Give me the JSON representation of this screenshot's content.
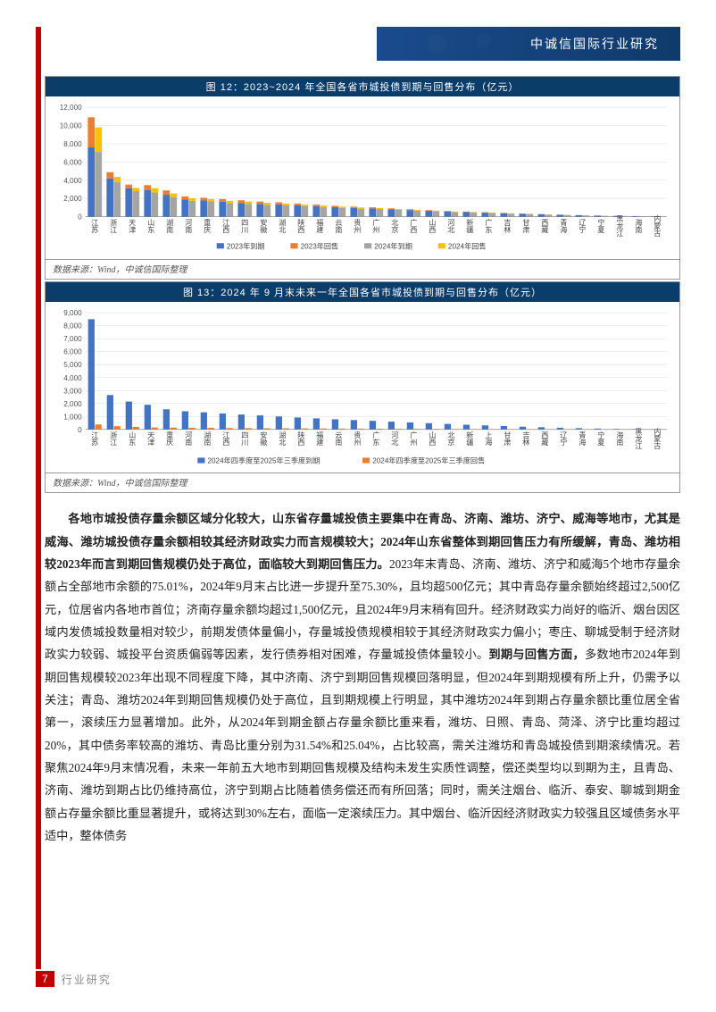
{
  "header": {
    "title": "中诚信国际行业研究"
  },
  "footer": {
    "page_num": "7",
    "label": "行业研究"
  },
  "chart12": {
    "type": "bar-stacked-grouped",
    "title": "图 12：2023~2024 年全国各省市城投债到期与回售分布（亿元）",
    "source": "数据来源：Wind，中诚信国际整理",
    "categories": [
      "江苏",
      "浙江",
      "天津",
      "山东",
      "湖南",
      "河南",
      "重庆",
      "江西",
      "四川",
      "安徽",
      "湖北",
      "陕西",
      "福建",
      "云南",
      "贵州",
      "广州",
      "北京",
      "广西",
      "山西",
      "河北",
      "新疆",
      "广东",
      "吉林",
      "甘肃",
      "西藏",
      "青海",
      "辽宁",
      "宁夏",
      "黑龙江",
      "海南",
      "内蒙古"
    ],
    "ylim": [
      0,
      12000
    ],
    "ytick_step": 2000,
    "group_gap_ratio": 0.25,
    "bar_gap_ratio": 0.02,
    "series": [
      {
        "name": "2023年到期",
        "color": "#4472c4",
        "stack": "a",
        "values": [
          7600,
          4200,
          3100,
          2900,
          2400,
          1900,
          1800,
          1650,
          1500,
          1400,
          1350,
          1250,
          1150,
          1050,
          950,
          900,
          800,
          720,
          640,
          560,
          500,
          440,
          380,
          320,
          260,
          210,
          160,
          120,
          90,
          60,
          40
        ]
      },
      {
        "name": "2023年回售",
        "color": "#ed7d31",
        "stack": "a",
        "values": [
          3300,
          680,
          420,
          560,
          480,
          320,
          280,
          280,
          300,
          260,
          230,
          190,
          180,
          150,
          150,
          130,
          110,
          100,
          80,
          70,
          60,
          50,
          40,
          30,
          25,
          20,
          15,
          10,
          8,
          5,
          4
        ]
      },
      {
        "name": "2024年到期",
        "color": "#a5a5a5",
        "stack": "b",
        "values": [
          7100,
          3800,
          2800,
          2650,
          2150,
          1750,
          1680,
          1500,
          1400,
          1300,
          1250,
          1150,
          1060,
          970,
          880,
          830,
          740,
          660,
          590,
          510,
          460,
          400,
          340,
          290,
          230,
          190,
          140,
          100,
          75,
          50,
          35
        ]
      },
      {
        "name": "2024年回售",
        "color": "#ffc000",
        "stack": "b",
        "values": [
          2700,
          560,
          360,
          480,
          400,
          270,
          250,
          240,
          260,
          220,
          200,
          170,
          160,
          130,
          130,
          110,
          95,
          85,
          70,
          60,
          50,
          42,
          34,
          26,
          20,
          15,
          11,
          8,
          6,
          4,
          3
        ]
      }
    ],
    "background_color": "#ffffff",
    "grid_color": "#dcdcdc",
    "axis_color": "#888888",
    "label_fontsize": 8
  },
  "chart13": {
    "type": "bar-grouped",
    "title": "图 13：2024 年 9 月末未来一年全国各省市城投债到期与回售分布（亿元）",
    "source": "数据来源：Wind，中诚信国际整理",
    "categories": [
      "江苏",
      "浙江",
      "山东",
      "天津",
      "重庆",
      "河南",
      "湖南",
      "江西",
      "四川",
      "安徽",
      "湖北",
      "陕西",
      "福建",
      "云南",
      "贵州",
      "广东",
      "河北",
      "广州",
      "山西",
      "北京",
      "新疆",
      "上海",
      "甘肃",
      "吉林",
      "西藏",
      "辽宁",
      "青海",
      "宁夏",
      "海南",
      "黑龙江",
      "内蒙古"
    ],
    "ylim": [
      0,
      9000
    ],
    "ytick_step": 1000,
    "group_gap_ratio": 0.28,
    "bar_gap_ratio": 0.04,
    "series": [
      {
        "name": "2024年四季度至2025年三季度到期",
        "color": "#4472c4",
        "values": [
          8500,
          2650,
          2150,
          1900,
          1550,
          1400,
          1320,
          1230,
          1150,
          1080,
          1000,
          920,
          850,
          780,
          720,
          660,
          600,
          540,
          480,
          420,
          360,
          310,
          260,
          210,
          170,
          130,
          95,
          65,
          40,
          25,
          15
        ]
      },
      {
        "name": "2024年四季度至2025年三季度回售",
        "color": "#ed7d31",
        "values": [
          380,
          250,
          200,
          150,
          140,
          130,
          120,
          110,
          100,
          90,
          85,
          80,
          74,
          68,
          62,
          56,
          50,
          44,
          38,
          32,
          27,
          23,
          19,
          15,
          12,
          9,
          7,
          5,
          3,
          2,
          1
        ]
      }
    ],
    "background_color": "#ffffff",
    "grid_color": "#dcdcdc",
    "axis_color": "#888888",
    "label_fontsize": 8
  },
  "para": {
    "s1_bold": "各地市城投债存量余额区域分化较大，山东省存量城投债主要集中在青岛、济南、潍坊、济宁、威海等地市，尤其是威海、潍坊城投债存量余额相较其经济财政实力而言规模较大；2024年山东省整体到期回售压力有所缓解，青岛、潍坊相较2023年而言到期回售规模仍处于高位，面临较大到期回售压力。",
    "s2": "2023年末青岛、济南、潍坊、济宁和威海5个地市存量余额占全部地市余额的75.01%，2024年9月末占比进一步提升至75.30%，且均超500亿元；其中青岛存量余额始终超过2,500亿元，位居省内各地市首位；济南存量余额均超过1,500亿元，且2024年9月末稍有回升。经济财政实力尚好的临沂、烟台因区域内发债城投数量相对较少，前期发债体量偏小，存量城投债规模相较于其经济财政实力偏小；枣庄、聊城受制于经济财政实力较弱、城投平台资质偏弱等因素，发行债券相对困难，存量城投债体量较小。",
    "s3_bold": "到期与回售方面，",
    "s4": "多数地市2024年到期回售规模较2023年出现不同程度下降，其中济南、济宁到期回售规模回落明显，但2024年到期规模有所上升，仍需予以关注；青岛、潍坊2024年到期回售规模仍处于高位，且到期规模上行明显，其中潍坊2024年到期占存量余额比重位居全省第一，滚续压力显著增加。此外，从2024年到期金额占存量余额比重来看，潍坊、日照、青岛、菏泽、济宁比重均超过20%，其中债务率较高的潍坊、青岛比重分别为31.54%和25.04%，占比较高，需关注潍坊和青岛城投债到期滚续情况。若聚焦2024年9月末情况看，未来一年前五大地市到期回售规模及结构未发生实质性调整，偿还类型均以到期为主，且青岛、济南、潍坊到期占比仍维持高位，济宁到期占比随着债务偿还而有所回落；同时，需关注烟台、临沂、泰安、聊城到期金额占存量余额比重显著提升，或将达到30%左右，面临一定滚续压力。其中烟台、临沂因经济财政实力较强且区域债务水平适中，整体债务"
  }
}
